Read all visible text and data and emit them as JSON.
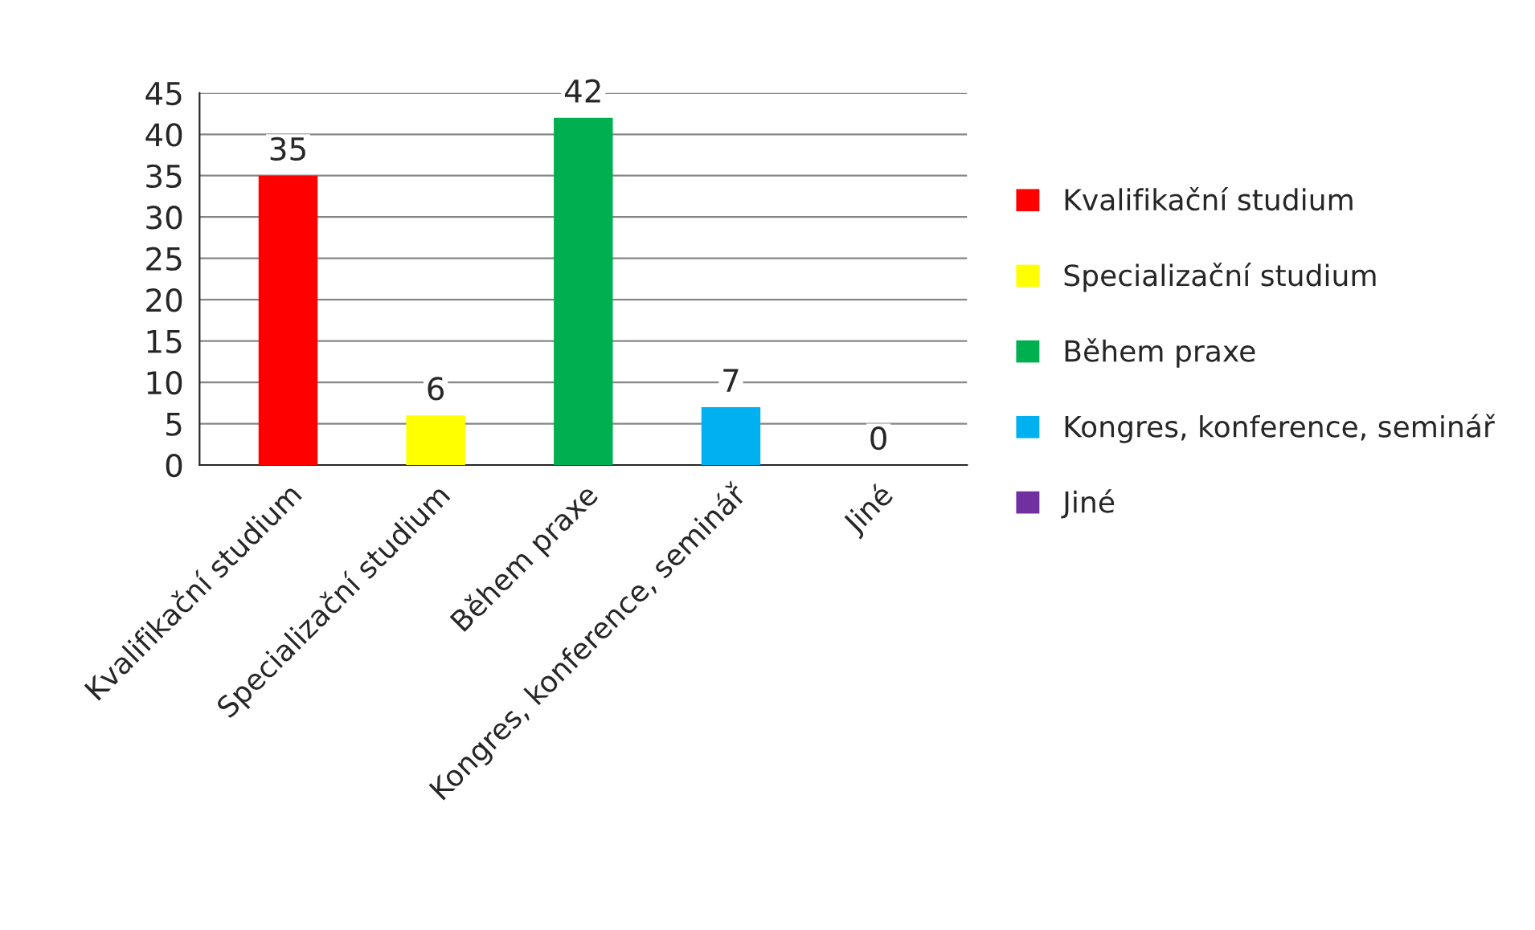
{
  "chart_data": {
    "type": "bar",
    "categories": [
      "Kvalifikační studium",
      "Specializační studium",
      "Během praxe",
      "Kongres, konference, seminář",
      "Jiné"
    ],
    "series": [
      {
        "name": "Kvalifikační studium",
        "color": "#ff0000",
        "values": [
          35,
          null,
          null,
          null,
          null
        ]
      },
      {
        "name": "Specializační studium",
        "color": "#ffff00",
        "values": [
          null,
          6,
          null,
          null,
          null
        ]
      },
      {
        "name": "Během praxe",
        "color": "#00b050",
        "values": [
          null,
          null,
          42,
          null,
          null
        ]
      },
      {
        "name": "Kongres, konference, seminář",
        "color": "#00b0f0",
        "values": [
          null,
          null,
          null,
          7,
          null
        ]
      },
      {
        "name": "Jiné",
        "color": "#7030a0",
        "values": [
          null,
          null,
          null,
          null,
          0
        ]
      }
    ],
    "ylim": [
      0,
      45
    ],
    "yticks": [
      0,
      5,
      10,
      15,
      20,
      25,
      30,
      35,
      40,
      45
    ],
    "grid": "y",
    "legend": "right",
    "data_labels": true
  }
}
